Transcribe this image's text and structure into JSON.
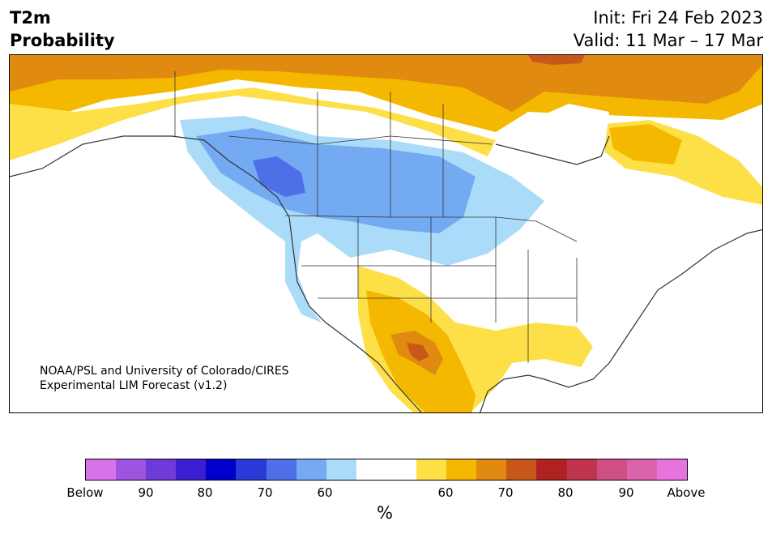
{
  "header": {
    "title_line1": "T2m",
    "title_line2": "Probability",
    "init": "Init: Fri 24 Feb 2023",
    "valid": "Valid: 11 Mar – 17 Mar"
  },
  "credit": {
    "line1": "NOAA/PSL and University of Colorado/CIRES",
    "line2": "Experimental LIM Forecast (v1.2)"
  },
  "colorbar": {
    "colors": [
      "#d673ea",
      "#9e54e0",
      "#6f3bd8",
      "#3a1ed1",
      "#0000cd",
      "#2a3ad6",
      "#4f6fe8",
      "#74aaf2",
      "#aadcfa",
      "#ffffff",
      "#ffffff",
      "#fde048",
      "#f5b800",
      "#e08a10",
      "#c8571a",
      "#b02222",
      "#c0344e",
      "#d04f82",
      "#db62ad",
      "#e674dc"
    ],
    "tick_labels": [
      "Below",
      "90",
      "80",
      "70",
      "60",
      "60",
      "70",
      "80",
      "90",
      "Above"
    ],
    "unit": "%"
  },
  "map": {
    "region": "North America",
    "categories": {
      "below_60": "#aadcfa",
      "below_70": "#74aaf2",
      "below_80": "#4f6fe8",
      "above_60": "#fde048",
      "above_70": "#f5b800",
      "above_80": "#e08a10",
      "above_90": "#c8571a"
    }
  }
}
